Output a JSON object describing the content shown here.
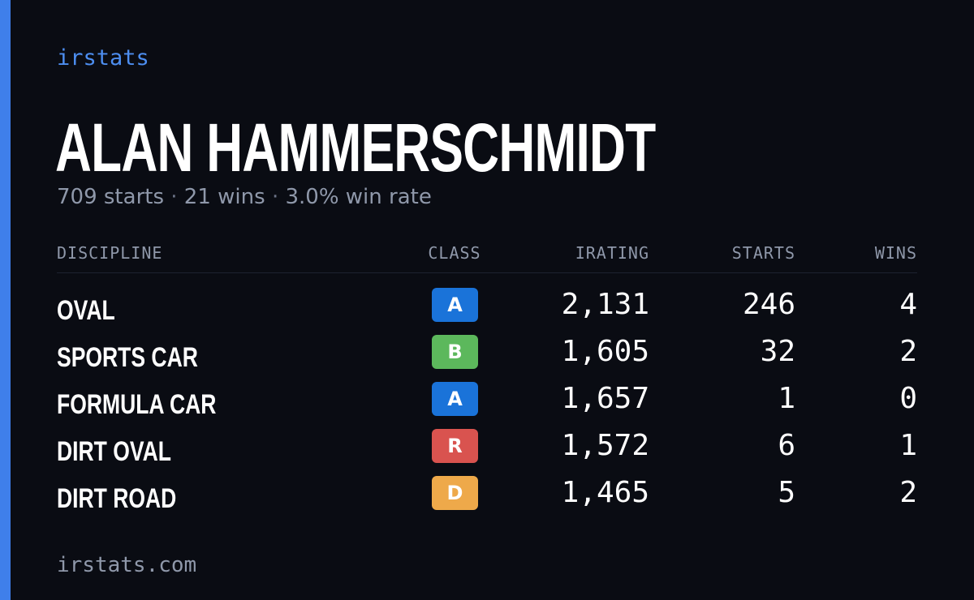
{
  "brand": "irstats",
  "player": {
    "name": "ALAN HAMMERSCHMIDT",
    "starts_text": "709 starts",
    "wins_text": "21 wins",
    "win_rate_text": "3.0% win rate",
    "separator": "·"
  },
  "table": {
    "headers": {
      "discipline": "DISCIPLINE",
      "class": "CLASS",
      "irating": "IRATING",
      "starts": "STARTS",
      "wins": "WINS"
    },
    "rows": [
      {
        "discipline": "OVAL",
        "class": "A",
        "class_color": "#1a73d9",
        "irating": "2,131",
        "starts": "246",
        "wins": "4"
      },
      {
        "discipline": "SPORTS CAR",
        "class": "B",
        "class_color": "#5cb85c",
        "irating": "1,605",
        "starts": "32",
        "wins": "2"
      },
      {
        "discipline": "FORMULA CAR",
        "class": "A",
        "class_color": "#1a73d9",
        "irating": "1,657",
        "starts": "1",
        "wins": "0"
      },
      {
        "discipline": "DIRT OVAL",
        "class": "R",
        "class_color": "#d9534f",
        "irating": "1,572",
        "starts": "6",
        "wins": "1"
      },
      {
        "discipline": "DIRT ROAD",
        "class": "D",
        "class_color": "#eea94a",
        "irating": "1,465",
        "starts": "5",
        "wins": "2"
      }
    ]
  },
  "footer": "irstats.com",
  "colors": {
    "background": "#0a0c13",
    "accent": "#3f7fea",
    "brand_text": "#4d8ef0",
    "muted_text": "#8f98aa"
  }
}
